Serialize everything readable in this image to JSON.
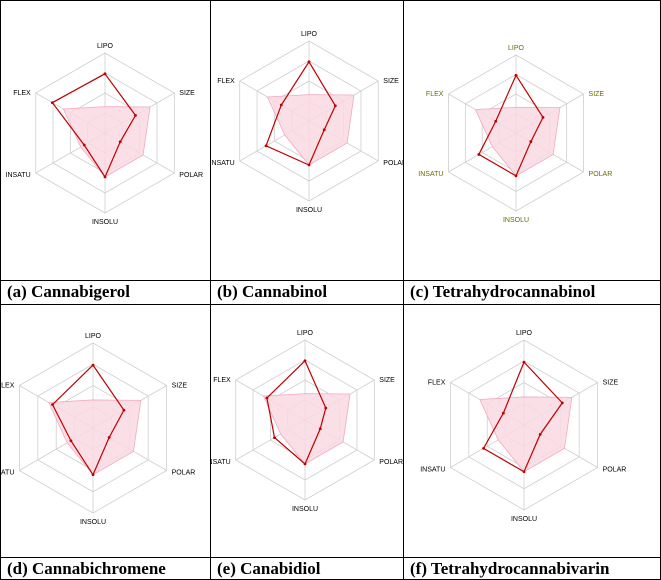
{
  "colors": {
    "grid": "#cfcfcf",
    "fill": "#f9d9e3",
    "fill_stroke": "#f4a9c0",
    "series": "#c00000",
    "label": "#000000",
    "label_alt": "#6b6b00"
  },
  "chart_data": [
    {
      "type": "radar",
      "caption": "(a) Cannabigerol",
      "axes": [
        "LIPO",
        "SIZE",
        "POLAR",
        "INSOLU",
        "INSATU",
        "FLEX"
      ],
      "optimal_range": [
        0.33,
        0.65,
        0.55,
        0.55,
        0.35,
        0.6
      ],
      "values": [
        0.74,
        0.44,
        0.22,
        0.55,
        0.3,
        0.76
      ],
      "label_color_key": "label"
    },
    {
      "type": "radar",
      "caption": "(b) Cannabinol",
      "axes": [
        "LIPO",
        "SIZE",
        "POLAR",
        "INSOLU",
        "INSATU",
        "FLEX"
      ],
      "optimal_range": [
        0.33,
        0.65,
        0.55,
        0.55,
        0.35,
        0.6
      ],
      "values": [
        0.74,
        0.38,
        0.22,
        0.55,
        0.62,
        0.4
      ],
      "label_color_key": "label"
    },
    {
      "type": "radar",
      "caption": "(c) Tetrahydrocannabinol",
      "axes": [
        "LIPO",
        "SIZE",
        "POLAR",
        "INSOLU",
        "INSATU",
        "FLEX"
      ],
      "optimal_range": [
        0.33,
        0.65,
        0.55,
        0.55,
        0.35,
        0.6
      ],
      "values": [
        0.74,
        0.4,
        0.22,
        0.55,
        0.55,
        0.3
      ],
      "label_color_key": "label_alt"
    },
    {
      "type": "radar",
      "caption": "(d)  Cannabichromene",
      "axes": [
        "LIPO",
        "SIZE",
        "POLAR",
        "INSOLU",
        "INSATU",
        "FLEX"
      ],
      "optimal_range": [
        0.33,
        0.65,
        0.55,
        0.55,
        0.35,
        0.6
      ],
      "values": [
        0.74,
        0.42,
        0.22,
        0.55,
        0.3,
        0.55
      ],
      "label_color_key": "label"
    },
    {
      "type": "radar",
      "caption": "(e) Canabidiol",
      "axes": [
        "LIPO",
        "SIZE",
        "POLAR",
        "INSOLU",
        "INSATU",
        "FLEX"
      ],
      "optimal_range": [
        0.33,
        0.65,
        0.55,
        0.55,
        0.35,
        0.6
      ],
      "values": [
        0.74,
        0.3,
        0.22,
        0.55,
        0.44,
        0.55
      ],
      "label_color_key": "label"
    },
    {
      "type": "radar",
      "caption": "(f)  Tetrahydrocannabivarin",
      "axes": [
        "LIPO",
        "SIZE",
        "POLAR",
        "INSOLU",
        "INSATU",
        "FLEX"
      ],
      "optimal_range": [
        0.33,
        0.65,
        0.55,
        0.55,
        0.35,
        0.6
      ],
      "values": [
        0.74,
        0.52,
        0.22,
        0.55,
        0.55,
        0.28
      ],
      "label_color_key": "label"
    }
  ]
}
